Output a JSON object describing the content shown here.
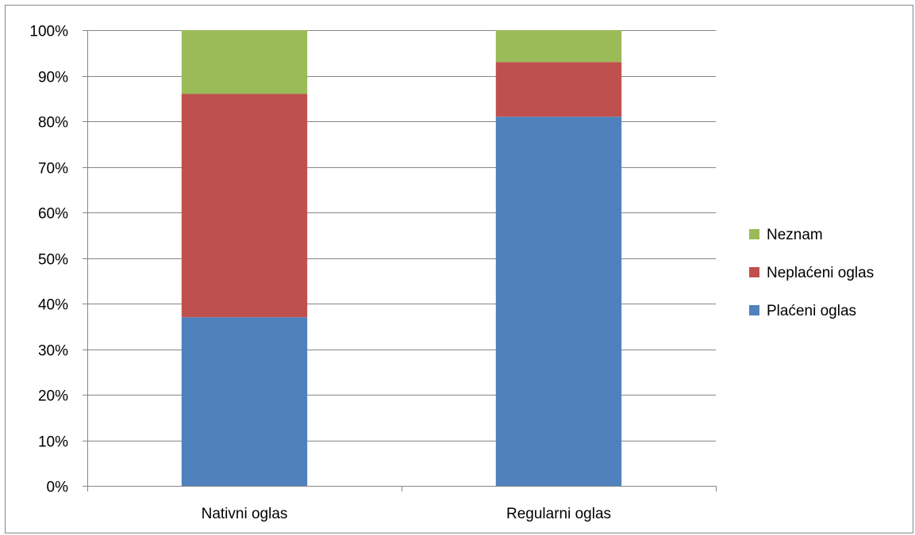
{
  "chart_data": {
    "type": "bar",
    "stacked": "percent",
    "categories": [
      "Nativni oglas",
      "Regularni oglas"
    ],
    "series": [
      {
        "name": "Plaćeni oglas",
        "values": [
          37,
          81
        ],
        "color": "#4F81BD"
      },
      {
        "name": "Neplaćeni oglas",
        "values": [
          49,
          12
        ],
        "color": "#C0504D"
      },
      {
        "name": "Neznam",
        "values": [
          14,
          7
        ],
        "color": "#9BBB59"
      }
    ],
    "y_ticks": [
      "0%",
      "10%",
      "20%",
      "30%",
      "40%",
      "50%",
      "60%",
      "70%",
      "80%",
      "90%",
      "100%"
    ],
    "ylim": [
      0,
      100
    ],
    "grid": true,
    "legend": {
      "position": "right",
      "order": [
        "Neznam",
        "Neplaćeni oglas",
        "Plaćeni oglas"
      ]
    },
    "colors": {
      "grid": "#868686",
      "axis": "#868686",
      "border": "#868686"
    }
  }
}
